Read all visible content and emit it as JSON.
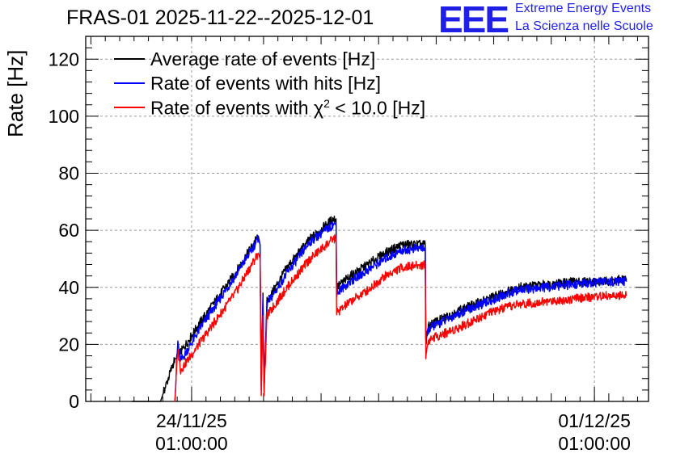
{
  "chart_data": {
    "type": "line",
    "title": "FRAS-01 2025-11-22--2025-12-01",
    "ylabel": "Rate [Hz]",
    "ylim": [
      0,
      128
    ],
    "yticks": [
      0,
      20,
      40,
      60,
      80,
      100,
      120
    ],
    "xlim_days": [
      0,
      9.78
    ],
    "x_ticks": [
      {
        "day": 1.84,
        "label_date": "24/11/25",
        "label_time": "01:00:00"
      },
      {
        "day": 8.84,
        "label_date": "01/12/25",
        "label_time": "01:00:00"
      }
    ],
    "grid": true,
    "legend": "top-left",
    "series": [
      {
        "name": "Average rate of events [Hz]",
        "color": "#000000",
        "x": [
          0.8,
          1.3,
          1.55,
          1.58,
          2.0,
          2.6,
          3.0,
          3.03,
          3.05,
          3.08,
          3.1,
          3.15,
          3.5,
          3.9,
          4.3,
          4.35,
          4.36,
          4.6,
          4.9,
          5.2,
          5.5,
          5.9,
          5.91,
          5.95,
          6.0,
          6.5,
          7.0,
          7.5,
          8.0,
          8.5,
          9.0,
          9.4
        ],
        "y": [
          0,
          0,
          15,
          15,
          28,
          45,
          58,
          55,
          5,
          38,
          5,
          35,
          47,
          57,
          64,
          64,
          40,
          44,
          48,
          52,
          55,
          55,
          21,
          26,
          27,
          32,
          36,
          40,
          41,
          42,
          42,
          43
        ]
      },
      {
        "name": "Rate of events with hits [Hz]",
        "color": "#0000ff",
        "x": [
          1.55,
          1.6,
          1.65,
          2.0,
          2.6,
          3.0,
          3.03,
          3.05,
          3.08,
          3.1,
          3.15,
          3.5,
          3.9,
          4.3,
          4.35,
          4.36,
          4.6,
          4.9,
          5.2,
          5.5,
          5.9,
          5.91,
          5.95,
          6.0,
          6.5,
          7.0,
          7.5,
          8.0,
          8.5,
          9.0,
          9.4
        ],
        "y": [
          0,
          21,
          14,
          26,
          44,
          57,
          55,
          4,
          37,
          4,
          34,
          45,
          56,
          62,
          62,
          38,
          42,
          46,
          50,
          53,
          54,
          20,
          25,
          26,
          31,
          35,
          39,
          40,
          41,
          42,
          42
        ]
      },
      {
        "name": "Rate of events with χ² < 10.0 [Hz]",
        "color": "#ff0000",
        "x": [
          1.55,
          1.6,
          1.65,
          2.0,
          2.6,
          3.0,
          3.03,
          3.05,
          3.08,
          3.1,
          3.15,
          3.5,
          3.9,
          4.3,
          4.35,
          4.36,
          4.6,
          4.9,
          5.2,
          5.5,
          5.9,
          5.91,
          5.95,
          6.0,
          6.5,
          7.0,
          7.5,
          8.0,
          8.5,
          9.0,
          9.4
        ],
        "y": [
          0,
          18,
          11,
          21,
          38,
          52,
          50,
          2,
          30,
          2,
          30,
          40,
          50,
          57,
          57,
          31,
          35,
          39,
          44,
          47,
          48,
          16,
          21,
          22,
          26,
          31,
          34,
          35,
          36,
          37,
          37
        ]
      }
    ]
  },
  "logo": {
    "mark": "EEE",
    "line1": "Extreme Energy Events",
    "line2": "La Scienza nelle Scuole"
  },
  "legend": {
    "label1": "Average rate of events [Hz]",
    "label2": "Rate of events with hits [Hz]",
    "label3_prefix": "Rate of events with ",
    "label3_chi": "χ",
    "label3_sup": "2",
    "label3_suffix": " < 10.0 [Hz]"
  }
}
